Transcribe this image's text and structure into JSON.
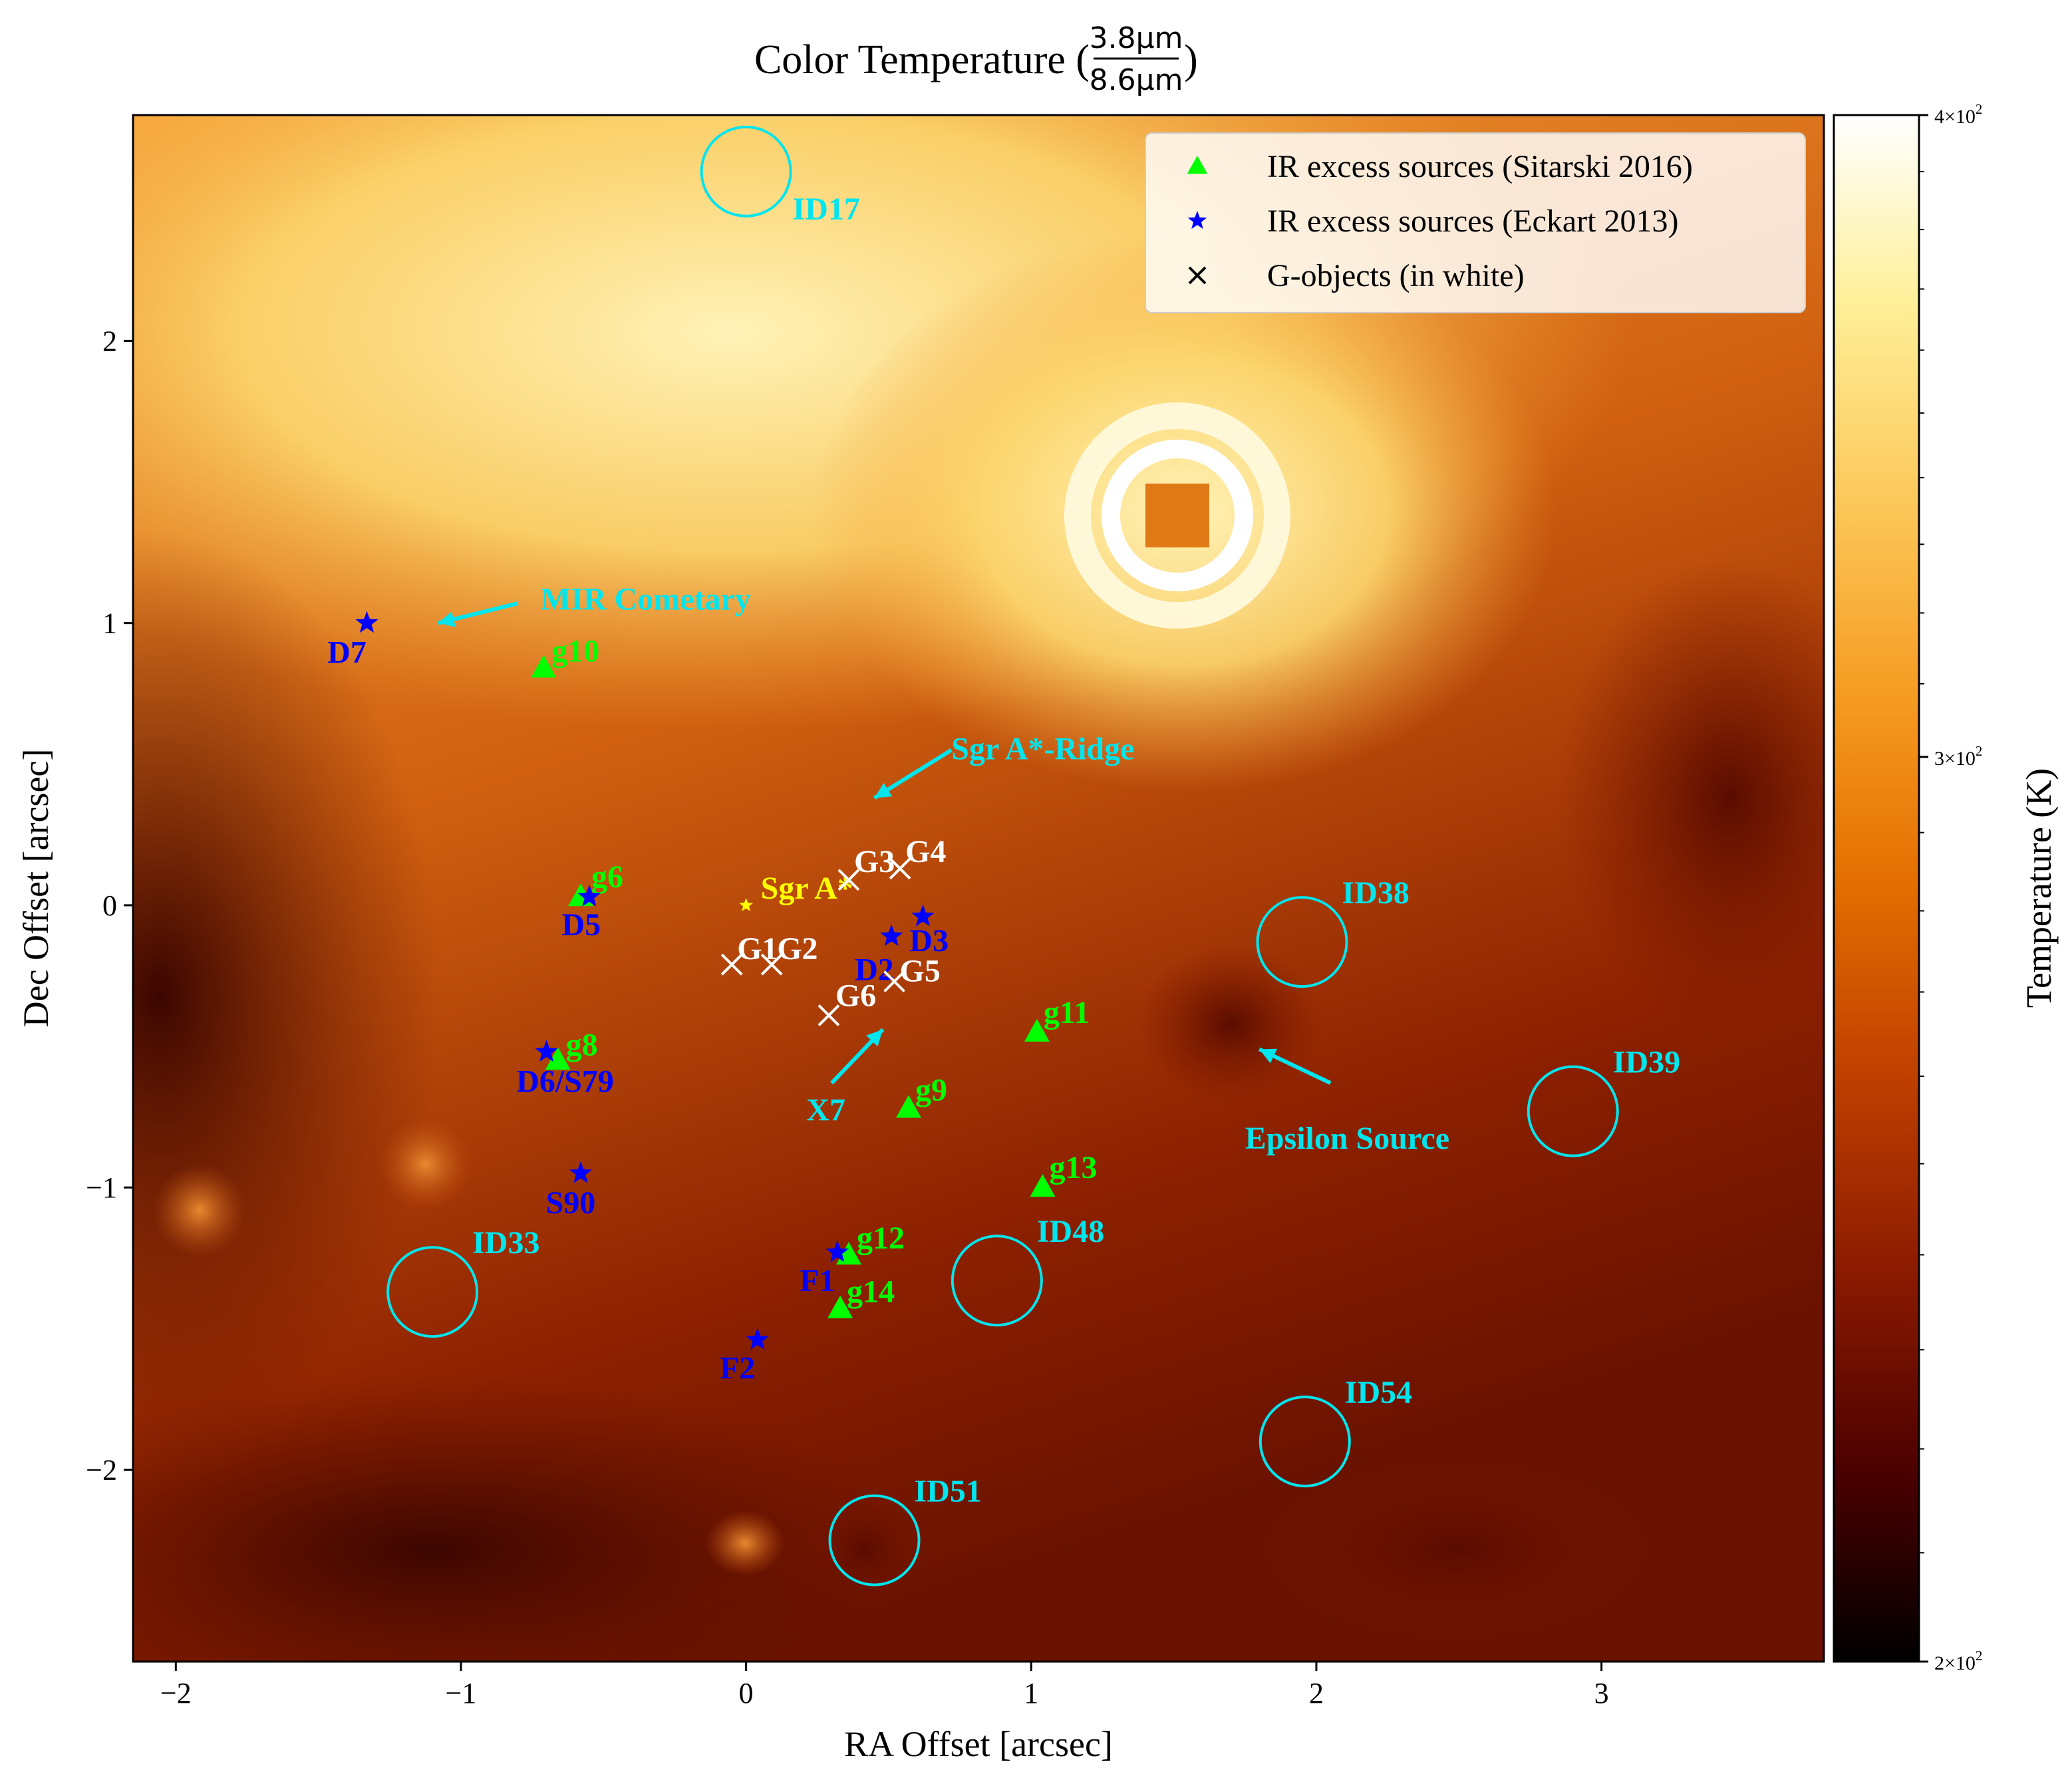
{
  "figure": {
    "title_prefix": "Color Temperature (",
    "title_suffix": ")",
    "title_fraction": {
      "numerator": "3.8μm",
      "denominator": "8.6μm"
    }
  },
  "chart_data": {
    "type": "heatmap",
    "xlabel": "RA Offset [arcsec]",
    "ylabel": "Dec Offset [arcsec]",
    "xlim": [
      -2.15,
      3.78
    ],
    "ylim": [
      -2.68,
      2.8
    ],
    "x_ticks": [
      -2,
      -1,
      0,
      1,
      2,
      3
    ],
    "x_tick_labels": [
      "−2",
      "−1",
      "0",
      "1",
      "2",
      "3"
    ],
    "y_ticks": [
      -2,
      -1,
      0,
      1,
      2
    ],
    "y_tick_labels": [
      "−2",
      "−1",
      "0",
      "1",
      "2"
    ],
    "grid": false,
    "colorbar": {
      "label": "Temperature (K)",
      "scale": "log",
      "range": [
        200,
        400
      ],
      "ticks": [
        200,
        300,
        400
      ],
      "tick_labels": [
        {
          "mantissa": "2",
          "sep": "×",
          "base": "10",
          "exp": "2"
        },
        {
          "mantissa": "3",
          "sep": "×",
          "base": "10",
          "exp": "2"
        },
        {
          "mantissa": "4",
          "sep": "×",
          "base": "10",
          "exp": "2"
        }
      ],
      "colormap": "afmhot",
      "colors": [
        "#000000",
        "#4a0000",
        "#8a1a00",
        "#c04000",
        "#e36d00",
        "#f59a20",
        "#fcc85a",
        "#fff09a",
        "#ffffff"
      ]
    },
    "legend": {
      "placement": "top-right",
      "entries": [
        {
          "label": "IR excess sources (Sitarski 2016)",
          "marker": "triangle",
          "color": "#00ff00"
        },
        {
          "label": "IR excess sources (Eckart 2013)",
          "marker": "star",
          "color": "#0000ff"
        },
        {
          "label": "G-objects (in white)",
          "marker": "x",
          "color": "#000000"
        }
      ]
    },
    "series": [
      {
        "name": "IR excess sources (Sitarski 2016)",
        "marker": "triangle",
        "color": "#00ff00",
        "points": [
          {
            "label": "g10",
            "x": -0.71,
            "y": 0.84
          },
          {
            "label": "g6",
            "x": -0.58,
            "y": 0.03
          },
          {
            "label": "g8",
            "x": -0.66,
            "y": -0.55
          },
          {
            "label": "g11",
            "x": 1.02,
            "y": -0.45
          },
          {
            "label": "g9",
            "x": 0.57,
            "y": -0.72
          },
          {
            "label": "g13",
            "x": 1.04,
            "y": -1.0
          },
          {
            "label": "g12",
            "x": 0.36,
            "y": -1.24
          },
          {
            "label": "g14",
            "x": 0.33,
            "y": -1.43
          }
        ]
      },
      {
        "name": "IR excess sources (Eckart 2013)",
        "marker": "star",
        "color": "#0000ff",
        "points": [
          {
            "label": "D7",
            "x": -1.33,
            "y": 1.0
          },
          {
            "label": "D5",
            "x": -0.55,
            "y": 0.03
          },
          {
            "label": "D3",
            "x": 0.62,
            "y": -0.04
          },
          {
            "label": "D2",
            "x": 0.51,
            "y": -0.11
          },
          {
            "label": "D6/S79",
            "x": -0.7,
            "y": -0.52
          },
          {
            "label": "S90",
            "x": -0.58,
            "y": -0.95
          },
          {
            "label": "F1",
            "x": 0.32,
            "y": -1.23
          },
          {
            "label": "F2",
            "x": 0.04,
            "y": -1.54
          }
        ]
      },
      {
        "name": "G-objects (in white)",
        "marker": "x",
        "color": "#ffffff",
        "points": [
          {
            "label": "G3",
            "x": 0.36,
            "y": 0.09
          },
          {
            "label": "G4",
            "x": 0.54,
            "y": 0.13
          },
          {
            "label": "G1",
            "x": -0.05,
            "y": -0.21
          },
          {
            "label": "G2",
            "x": 0.09,
            "y": -0.21
          },
          {
            "label": "G5",
            "x": 0.52,
            "y": -0.27
          },
          {
            "label": "G6",
            "x": 0.29,
            "y": -0.39
          }
        ]
      }
    ],
    "sgr_a": {
      "label": "Sgr A*",
      "x": 0.0,
      "y": 0.0,
      "color": "#ffff00"
    },
    "circles": [
      {
        "label": "ID17",
        "x": 0.0,
        "y": 2.6
      },
      {
        "label": "ID38",
        "x": 1.95,
        "y": -0.13
      },
      {
        "label": "ID39",
        "x": 2.9,
        "y": -0.73
      },
      {
        "label": "ID33",
        "x": -1.1,
        "y": -1.37
      },
      {
        "label": "ID48",
        "x": 0.88,
        "y": -1.33
      },
      {
        "label": "ID54",
        "x": 1.96,
        "y": -1.9
      },
      {
        "label": "ID51",
        "x": 0.45,
        "y": -2.25
      }
    ],
    "circle_color": "#00e5ee",
    "arrows": [
      {
        "label": "MIR Cometary",
        "from": [
          -0.8,
          1.07
        ],
        "to": [
          -1.08,
          1.0
        ]
      },
      {
        "label": "Sgr A*-Ridge",
        "from": [
          0.72,
          0.55
        ],
        "to": [
          0.45,
          0.38
        ]
      },
      {
        "label": "Epsilon Source",
        "from": [
          2.05,
          -0.63
        ],
        "to": [
          1.8,
          -0.51
        ]
      },
      {
        "label": "X7",
        "from": [
          0.3,
          -0.63
        ],
        "to": [
          0.48,
          -0.44
        ]
      }
    ],
    "annotation_colors": {
      "sitarski": "#00ff00",
      "eckart": "#0000ff",
      "g_objects": "#ffffff",
      "sgr_a": "#ffff00",
      "cyan": "#00e5ee"
    }
  }
}
